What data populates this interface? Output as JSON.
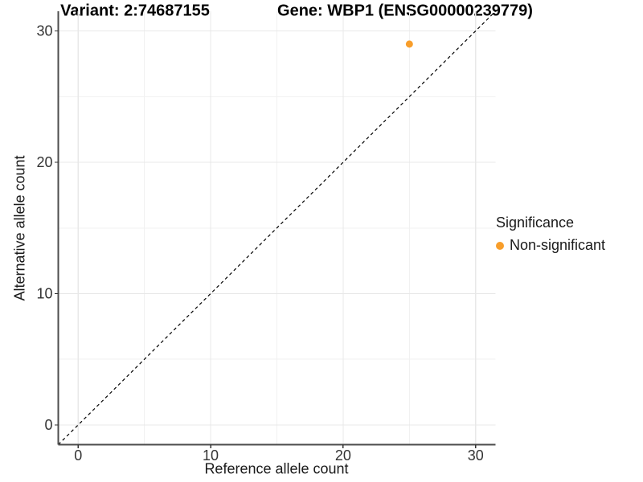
{
  "chart_data": {
    "type": "scatter",
    "titles": {
      "variant": "Variant: 2:74687155",
      "gene": "Gene: WBP1 (ENSG00000239779)"
    },
    "xlabel": "Reference allele count",
    "ylabel": "Alternative allele count",
    "xlim": [
      -1.5,
      31.5
    ],
    "ylim": [
      -1.5,
      31.5
    ],
    "xticks": [
      0,
      10,
      20,
      30
    ],
    "yticks": [
      0,
      10,
      20,
      30
    ],
    "grid": {
      "major": true,
      "minor": true
    },
    "series": [
      {
        "name": "Non-significant",
        "color": "#F89E2B",
        "marker": "circle",
        "points": [
          {
            "x": 25,
            "y": 29
          }
        ]
      }
    ],
    "reference_line": {
      "type": "identity",
      "slope": 1,
      "intercept": 0,
      "style": "dashed",
      "color": "#000000"
    },
    "legend": {
      "title": "Significance",
      "position": "right"
    },
    "style": {
      "background": "#FFFFFF",
      "grid_major_color": "#E8E8E8",
      "grid_minor_color": "#F1F1F1",
      "axis_line_color": "#4D4D4D",
      "tick_mark_color": "#333333",
      "tick_label_color": "#333333"
    }
  }
}
